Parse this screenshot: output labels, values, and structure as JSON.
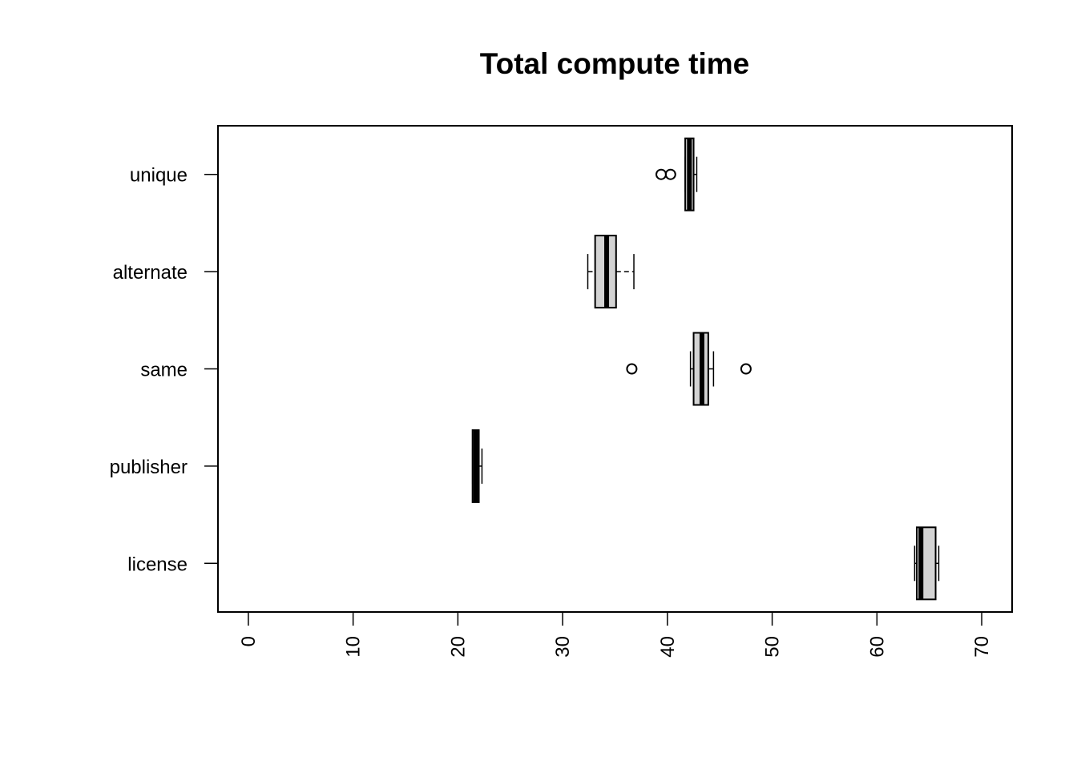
{
  "chart_data": {
    "type": "boxplot",
    "orientation": "horizontal",
    "title": "Total compute time",
    "xlabel": "",
    "ylabel": "",
    "xlim": [
      -2.9,
      72.9
    ],
    "x_ticks": [
      0,
      10,
      20,
      30,
      40,
      50,
      60,
      70
    ],
    "x_tick_labels": [
      "0",
      "10",
      "20",
      "30",
      "40",
      "50",
      "60",
      "70"
    ],
    "tick_label_rotation": "vertical",
    "grid": false,
    "legend": "none",
    "box_fill": "#d3d3d3",
    "categories": [
      "unique",
      "alternate",
      "same",
      "publisher",
      "license"
    ],
    "boxes": [
      {
        "name": "unique",
        "whisker_low": 41.7,
        "q1": 41.7,
        "median": 42.1,
        "q3": 42.5,
        "whisker_high": 42.8,
        "outliers": [
          39.4,
          40.3
        ]
      },
      {
        "name": "alternate",
        "whisker_low": 32.4,
        "q1": 33.1,
        "median": 34.2,
        "q3": 35.1,
        "whisker_high": 36.8,
        "outliers": []
      },
      {
        "name": "same",
        "whisker_low": 42.2,
        "q1": 42.5,
        "median": 43.3,
        "q3": 43.9,
        "whisker_high": 44.4,
        "outliers": [
          36.6,
          47.5
        ]
      },
      {
        "name": "publisher",
        "whisker_low": 21.4,
        "q1": 21.4,
        "median": 21.7,
        "q3": 22.0,
        "whisker_high": 22.3,
        "outliers": []
      },
      {
        "name": "license",
        "whisker_low": 63.6,
        "q1": 63.8,
        "median": 64.2,
        "q3": 65.6,
        "whisker_high": 65.9,
        "outliers": []
      }
    ]
  }
}
